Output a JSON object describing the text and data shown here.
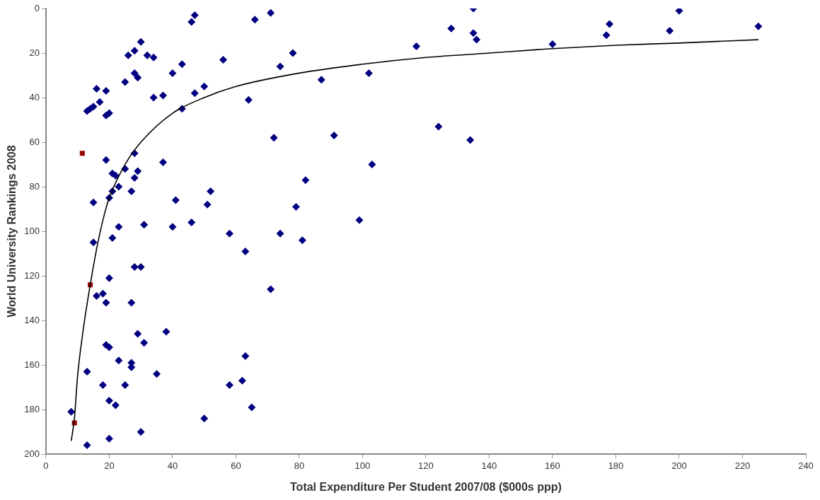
{
  "chart_data": {
    "type": "scatter",
    "xlabel": "Total Expenditure Per Student 2007/08 ($000s ppp)",
    "ylabel": "World University Rankings 2008",
    "xlim": [
      0,
      240
    ],
    "xticks": [
      0,
      20,
      40,
      60,
      80,
      100,
      120,
      140,
      160,
      180,
      200,
      220,
      240
    ],
    "ylim": [
      200,
      0
    ],
    "yticks": [
      0,
      20,
      40,
      60,
      80,
      100,
      120,
      140,
      160,
      180,
      200
    ],
    "grid": false,
    "legend": false,
    "series": [
      {
        "color": "#000080",
        "marker": "diamond",
        "x": [
          8,
          13,
          13,
          13,
          14,
          15,
          16,
          15,
          15,
          17,
          16,
          18,
          18,
          19,
          19,
          19,
          19,
          19,
          20,
          20,
          20,
          20,
          20,
          20,
          21,
          21,
          21,
          22,
          22,
          23,
          23,
          23,
          25,
          25,
          25,
          26,
          27,
          27,
          27,
          27,
          28,
          28,
          28,
          28,
          29,
          29,
          28,
          29,
          30,
          30,
          30,
          31,
          31,
          32,
          34,
          34,
          35,
          37,
          37,
          38,
          40,
          40,
          41,
          43,
          43,
          46,
          46,
          47,
          47,
          50,
          51,
          52,
          50,
          56,
          58,
          58,
          62,
          63,
          63,
          64,
          65,
          66,
          71,
          71,
          72,
          74,
          74,
          78,
          79,
          81,
          82,
          87,
          91,
          99,
          102,
          103,
          117,
          124,
          128,
          134,
          135,
          135,
          136,
          160,
          177,
          178,
          197,
          200,
          225
        ],
        "values": [
          181,
          196,
          163,
          46,
          45,
          44,
          36,
          87,
          105,
          42,
          129,
          128,
          169,
          48,
          37,
          68,
          132,
          151,
          47,
          85,
          121,
          152,
          176,
          193,
          103,
          74,
          82,
          75,
          178,
          158,
          98,
          80,
          72,
          33,
          169,
          21,
          132,
          82,
          161,
          159,
          65,
          19,
          29,
          76,
          31,
          73,
          116,
          146,
          15,
          116,
          190,
          97,
          150,
          21,
          22,
          40,
          164,
          69,
          39,
          145,
          29,
          98,
          86,
          25,
          45,
          6,
          96,
          3,
          38,
          35,
          88,
          82,
          184,
          23,
          101,
          169,
          167,
          156,
          109,
          41,
          179,
          5,
          2,
          126,
          58,
          26,
          101,
          20,
          89,
          104,
          77,
          32,
          57,
          95,
          29,
          70,
          17,
          53,
          9,
          59,
          0,
          11,
          14,
          16,
          12,
          7,
          10,
          1,
          8
        ]
      },
      {
        "color": "#990000",
        "marker": "square",
        "x": [
          11.5,
          14,
          9
        ],
        "values": [
          65,
          124,
          186
        ]
      },
      {
        "type": "line",
        "color": "#000000",
        "marker": "none",
        "line_style": "solid",
        "x": [
          8,
          9,
          10,
          12,
          14,
          16,
          18,
          20,
          25,
          30,
          40,
          50,
          60,
          80,
          100,
          120,
          140,
          160,
          180,
          200,
          225
        ],
        "values": [
          194,
          184,
          165,
          142,
          124,
          108,
          95,
          85,
          70,
          60,
          47,
          40,
          35,
          29,
          25,
          22,
          20,
          18,
          16.5,
          15.5,
          14
        ]
      }
    ]
  }
}
